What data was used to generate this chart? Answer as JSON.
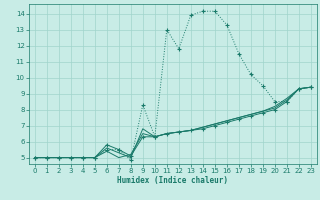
{
  "xlabel": "Humidex (Indice chaleur)",
  "bg_color": "#c8ece6",
  "grid_color": "#a0d4cc",
  "line_color": "#1a7a6a",
  "xlim": [
    -0.5,
    23.5
  ],
  "ylim": [
    4.6,
    14.6
  ],
  "xticks": [
    0,
    1,
    2,
    3,
    4,
    5,
    6,
    7,
    8,
    9,
    10,
    11,
    12,
    13,
    14,
    15,
    16,
    17,
    18,
    19,
    20,
    21,
    22,
    23
  ],
  "yticks": [
    5,
    6,
    7,
    8,
    9,
    10,
    11,
    12,
    13,
    14
  ],
  "s1_x": [
    0,
    1,
    2,
    3,
    4,
    5,
    6,
    7,
    8,
    9,
    10,
    11,
    12,
    13,
    14,
    15,
    16,
    17,
    18,
    19,
    20,
    21,
    22,
    23
  ],
  "s1_y": [
    5.0,
    5.0,
    5.0,
    5.0,
    5.0,
    5.0,
    5.5,
    5.5,
    4.85,
    8.3,
    6.3,
    13.0,
    11.8,
    13.9,
    14.15,
    14.15,
    13.3,
    11.5,
    10.2,
    9.5,
    8.5,
    8.5,
    9.3,
    9.4
  ],
  "s2_x": [
    0,
    1,
    2,
    3,
    4,
    5,
    6,
    7,
    8,
    9,
    10,
    11,
    12,
    13,
    14,
    15,
    16,
    17,
    18,
    19,
    20,
    21,
    22,
    23
  ],
  "s2_y": [
    5.0,
    5.0,
    5.0,
    5.0,
    5.0,
    5.0,
    5.8,
    5.5,
    5.1,
    6.3,
    6.3,
    6.5,
    6.6,
    6.7,
    6.8,
    7.0,
    7.2,
    7.4,
    7.6,
    7.8,
    8.0,
    8.5,
    9.3,
    9.4
  ],
  "s3_x": [
    0,
    1,
    2,
    3,
    4,
    5,
    6,
    7,
    8,
    9,
    10,
    11,
    12,
    13,
    14,
    15,
    16,
    17,
    18,
    19,
    20,
    21,
    22,
    23
  ],
  "s3_y": [
    5.0,
    5.0,
    5.0,
    5.0,
    5.0,
    5.0,
    5.4,
    5.0,
    5.2,
    6.5,
    6.3,
    6.5,
    6.6,
    6.7,
    6.9,
    7.1,
    7.3,
    7.5,
    7.7,
    7.9,
    8.1,
    8.6,
    9.3,
    9.4
  ],
  "s4_x": [
    0,
    1,
    2,
    3,
    4,
    5,
    6,
    7,
    8,
    9,
    10,
    11,
    12,
    13,
    14,
    15,
    16,
    17,
    18,
    19,
    20,
    21,
    22,
    23
  ],
  "s4_y": [
    5.0,
    5.0,
    5.0,
    5.0,
    5.0,
    5.0,
    5.6,
    5.3,
    5.0,
    6.8,
    6.3,
    6.5,
    6.6,
    6.7,
    6.9,
    7.1,
    7.3,
    7.5,
    7.7,
    7.9,
    8.2,
    8.7,
    9.3,
    9.4
  ],
  "tick_fontsize": 5.0,
  "xlabel_fontsize": 5.5,
  "lw": 0.7,
  "marker_size": 2.5
}
